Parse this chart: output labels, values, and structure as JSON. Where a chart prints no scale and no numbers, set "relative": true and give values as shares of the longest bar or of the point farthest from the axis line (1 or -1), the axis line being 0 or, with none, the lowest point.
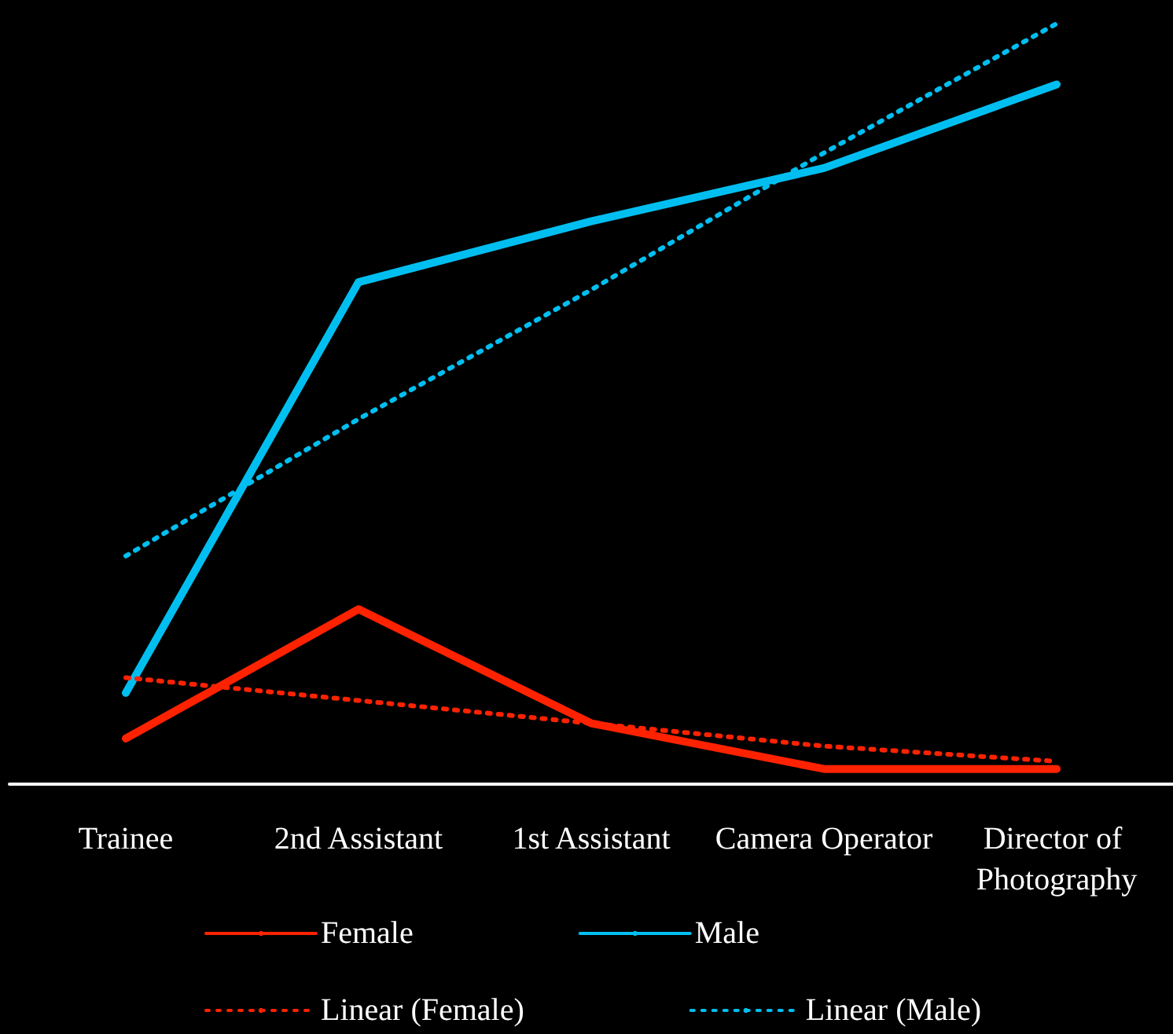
{
  "chart_data": {
    "type": "line",
    "relative": true,
    "categories": [
      "Trainee",
      "2nd Assistant",
      "1st Assistant",
      "Camera Operator",
      "Director of Photography"
    ],
    "series": [
      {
        "name": "Female",
        "color": "#ff2200",
        "line_style": "solid",
        "values": [
          0.06,
          0.23,
          0.08,
          0.02,
          0.02
        ]
      },
      {
        "name": "Male",
        "color": "#00bff0",
        "line_style": "solid",
        "values": [
          0.12,
          0.66,
          0.74,
          0.81,
          0.92
        ]
      },
      {
        "name": "Linear (Female)",
        "color": "#ff2200",
        "line_style": "dotted",
        "values": [
          0.14,
          0.11,
          0.08,
          0.05,
          0.03
        ]
      },
      {
        "name": "Linear (Male)",
        "color": "#00bff0",
        "line_style": "dotted",
        "values": [
          0.3,
          0.48,
          0.65,
          0.83,
          1
        ]
      }
    ],
    "marker": "none",
    "grid": false,
    "legend": "bottom"
  }
}
